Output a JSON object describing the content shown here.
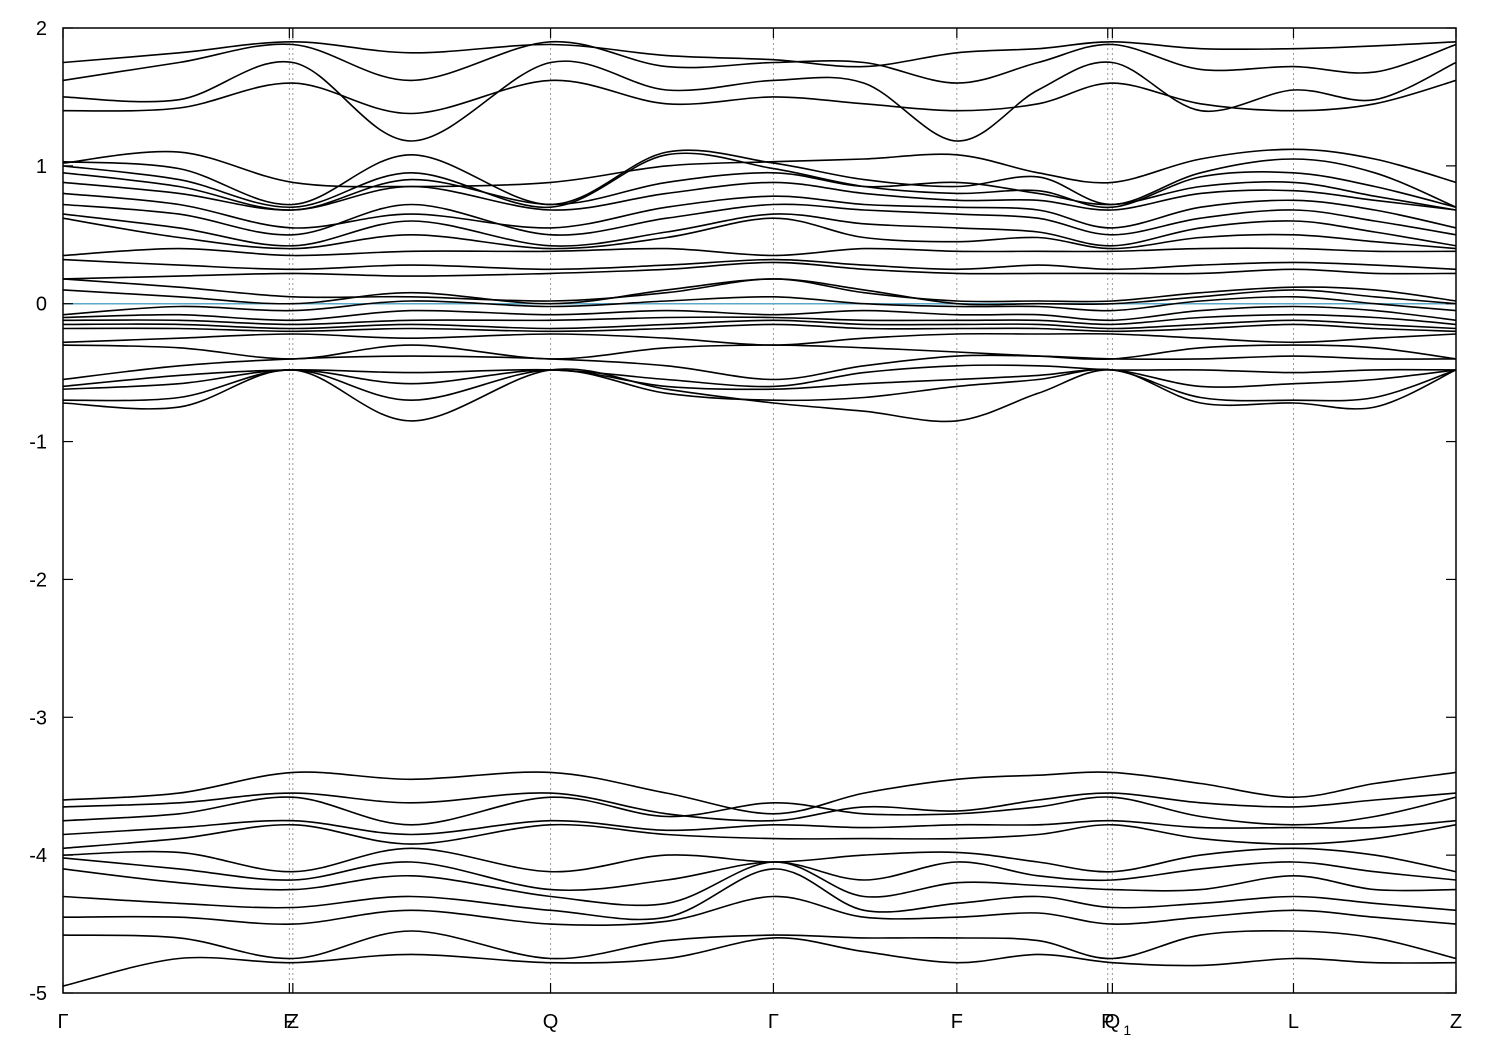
{
  "chart_data": {
    "type": "line",
    "title": "",
    "xlabel": "",
    "ylabel": "",
    "xlim": [
      0,
      6.0
    ],
    "ylim": [
      -5,
      2
    ],
    "yticks": [
      -5,
      -4,
      -3,
      -2,
      -1,
      0,
      1,
      2
    ],
    "grid": "vertical dotted at high-symmetry points",
    "fermi_level": 0,
    "kpoints": [
      {
        "x": 0.0,
        "label": "Γ",
        "sub": ""
      },
      {
        "x": 0.975,
        "label": "F",
        "sub": ""
      },
      {
        "x": 0.99,
        "label": "Z",
        "sub": ""
      },
      {
        "x": 2.1,
        "label": "Q",
        "sub": ""
      },
      {
        "x": 3.06,
        "label": "Γ",
        "sub": ""
      },
      {
        "x": 3.85,
        "label": "F",
        "sub": ""
      },
      {
        "x": 4.5,
        "label": "P",
        "sub": ""
      },
      {
        "x": 4.52,
        "label": "Q",
        "sub": "1"
      },
      {
        "x": 5.3,
        "label": "L",
        "sub": ""
      },
      {
        "x": 6.0,
        "label": "Z",
        "sub": ""
      }
    ],
    "band_x": [
      0.0,
      0.5,
      0.99,
      1.5,
      2.1,
      2.6,
      3.06,
      3.45,
      3.85,
      4.2,
      4.52,
      4.9,
      5.3,
      5.65,
      6.0
    ],
    "series": [
      {
        "values": [
          1.4,
          1.42,
          1.6,
          1.38,
          1.62,
          1.45,
          1.5,
          1.45,
          1.4,
          1.45,
          1.6,
          1.45,
          1.4,
          1.45,
          1.62
        ]
      },
      {
        "values": [
          1.5,
          1.48,
          1.75,
          1.18,
          1.75,
          1.55,
          1.62,
          1.6,
          1.18,
          1.55,
          1.75,
          1.4,
          1.55,
          1.48,
          1.75
        ]
      },
      {
        "values": [
          1.62,
          1.75,
          1.88,
          1.62,
          1.9,
          1.72,
          1.75,
          1.75,
          1.6,
          1.75,
          1.88,
          1.7,
          1.72,
          1.68,
          1.88
        ]
      },
      {
        "values": [
          1.75,
          1.82,
          1.9,
          1.82,
          1.88,
          1.8,
          1.77,
          1.72,
          1.82,
          1.85,
          1.9,
          1.85,
          1.85,
          1.87,
          1.9
        ]
      },
      {
        "values": [
          1.02,
          1.1,
          0.88,
          0.85,
          0.88,
          1.0,
          1.03,
          1.05,
          1.08,
          0.95,
          0.88,
          1.05,
          1.12,
          1.05,
          0.88
        ]
      },
      {
        "values": [
          1.03,
          0.98,
          0.72,
          1.08,
          0.72,
          1.1,
          1.02,
          0.9,
          0.85,
          0.92,
          0.72,
          0.95,
          1.05,
          0.95,
          0.7
        ]
      },
      {
        "values": [
          1.0,
          0.9,
          0.7,
          0.95,
          0.7,
          1.08,
          0.98,
          0.85,
          0.8,
          0.82,
          0.7,
          0.92,
          0.95,
          0.85,
          0.7
        ]
      },
      {
        "values": [
          0.95,
          0.85,
          0.68,
          0.9,
          0.72,
          0.88,
          0.95,
          0.85,
          0.88,
          0.8,
          0.72,
          0.85,
          0.88,
          0.78,
          0.68
        ]
      },
      {
        "values": [
          0.88,
          0.8,
          0.68,
          0.85,
          0.68,
          0.8,
          0.88,
          0.8,
          0.75,
          0.75,
          0.68,
          0.8,
          0.82,
          0.75,
          0.68
        ]
      },
      {
        "values": [
          0.8,
          0.72,
          0.55,
          0.65,
          0.55,
          0.7,
          0.78,
          0.72,
          0.7,
          0.68,
          0.55,
          0.7,
          0.75,
          0.68,
          0.55
        ]
      },
      {
        "values": [
          0.72,
          0.65,
          0.5,
          0.72,
          0.5,
          0.62,
          0.72,
          0.68,
          0.65,
          0.62,
          0.5,
          0.62,
          0.68,
          0.6,
          0.5
        ]
      },
      {
        "values": [
          0.65,
          0.55,
          0.42,
          0.6,
          0.42,
          0.52,
          0.65,
          0.58,
          0.55,
          0.52,
          0.42,
          0.55,
          0.6,
          0.52,
          0.42
        ]
      },
      {
        "values": [
          0.62,
          0.48,
          0.4,
          0.5,
          0.4,
          0.48,
          0.62,
          0.48,
          0.45,
          0.48,
          0.4,
          0.48,
          0.5,
          0.45,
          0.4
        ]
      },
      {
        "values": [
          0.35,
          0.4,
          0.35,
          0.38,
          0.38,
          0.4,
          0.35,
          0.4,
          0.38,
          0.38,
          0.38,
          0.4,
          0.4,
          0.38,
          0.38
        ]
      },
      {
        "values": [
          0.32,
          0.28,
          0.25,
          0.28,
          0.25,
          0.28,
          0.32,
          0.28,
          0.25,
          0.28,
          0.25,
          0.28,
          0.3,
          0.28,
          0.25
        ]
      },
      {
        "values": [
          0.18,
          0.2,
          0.22,
          0.2,
          0.22,
          0.25,
          0.3,
          0.25,
          0.22,
          0.22,
          0.22,
          0.22,
          0.25,
          0.22,
          0.22
        ]
      },
      {
        "values": [
          0.18,
          0.12,
          0.05,
          0.05,
          0.02,
          0.08,
          0.18,
          0.08,
          0.02,
          0.02,
          0.02,
          0.08,
          0.12,
          0.1,
          0.02
        ]
      },
      {
        "values": [
          0.1,
          0.05,
          0.0,
          0.08,
          0.0,
          0.1,
          0.18,
          0.1,
          0.0,
          0.0,
          0.0,
          0.05,
          0.1,
          0.05,
          0.0
        ]
      },
      {
        "values": [
          -0.08,
          -0.02,
          -0.05,
          0.02,
          -0.02,
          0.02,
          0.05,
          0.0,
          -0.02,
          -0.02,
          -0.05,
          0.02,
          0.05,
          0.0,
          -0.05
        ]
      },
      {
        "values": [
          -0.1,
          -0.08,
          -0.12,
          -0.05,
          -0.08,
          -0.05,
          -0.08,
          -0.05,
          -0.08,
          -0.08,
          -0.12,
          -0.05,
          -0.02,
          -0.05,
          -0.12
        ]
      },
      {
        "values": [
          -0.12,
          -0.12,
          -0.15,
          -0.12,
          -0.12,
          -0.1,
          -0.1,
          -0.12,
          -0.12,
          -0.12,
          -0.15,
          -0.1,
          -0.08,
          -0.1,
          -0.15
        ]
      },
      {
        "values": [
          -0.15,
          -0.15,
          -0.18,
          -0.15,
          -0.18,
          -0.15,
          -0.12,
          -0.15,
          -0.15,
          -0.15,
          -0.18,
          -0.15,
          -0.12,
          -0.15,
          -0.18
        ]
      },
      {
        "values": [
          -0.18,
          -0.18,
          -0.2,
          -0.18,
          -0.2,
          -0.18,
          -0.15,
          -0.18,
          -0.18,
          -0.18,
          -0.2,
          -0.18,
          -0.15,
          -0.18,
          -0.2
        ]
      },
      {
        "values": [
          -0.28,
          -0.25,
          -0.22,
          -0.25,
          -0.22,
          -0.25,
          -0.3,
          -0.25,
          -0.22,
          -0.22,
          -0.22,
          -0.25,
          -0.28,
          -0.25,
          -0.22
        ]
      },
      {
        "values": [
          -0.3,
          -0.32,
          -0.4,
          -0.3,
          -0.4,
          -0.32,
          -0.3,
          -0.32,
          -0.35,
          -0.38,
          -0.4,
          -0.32,
          -0.3,
          -0.32,
          -0.4
        ]
      },
      {
        "values": [
          -0.55,
          -0.45,
          -0.4,
          -0.38,
          -0.4,
          -0.45,
          -0.55,
          -0.45,
          -0.38,
          -0.38,
          -0.4,
          -0.4,
          -0.38,
          -0.4,
          -0.4
        ]
      },
      {
        "values": [
          -0.6,
          -0.52,
          -0.48,
          -0.5,
          -0.48,
          -0.55,
          -0.6,
          -0.5,
          -0.45,
          -0.45,
          -0.48,
          -0.48,
          -0.5,
          -0.48,
          -0.48
        ]
      },
      {
        "values": [
          -0.62,
          -0.58,
          -0.48,
          -0.58,
          -0.48,
          -0.6,
          -0.62,
          -0.58,
          -0.55,
          -0.52,
          -0.48,
          -0.6,
          -0.58,
          -0.55,
          -0.48
        ]
      },
      {
        "values": [
          -0.7,
          -0.68,
          -0.48,
          -0.7,
          -0.48,
          -0.65,
          -0.7,
          -0.68,
          -0.6,
          -0.55,
          -0.48,
          -0.68,
          -0.7,
          -0.68,
          -0.48
        ]
      },
      {
        "values": [
          -0.72,
          -0.75,
          -0.48,
          -0.85,
          -0.48,
          -0.62,
          -0.72,
          -0.78,
          -0.85,
          -0.65,
          -0.48,
          -0.72,
          -0.72,
          -0.75,
          -0.48
        ]
      },
      {
        "values": [
          -3.6,
          -3.55,
          -3.4,
          -3.45,
          -3.4,
          -3.55,
          -3.7,
          -3.55,
          -3.45,
          -3.42,
          -3.4,
          -3.48,
          -3.58,
          -3.48,
          -3.4
        ]
      },
      {
        "values": [
          -3.65,
          -3.62,
          -3.55,
          -3.62,
          -3.55,
          -3.7,
          -3.75,
          -3.65,
          -3.68,
          -3.6,
          -3.55,
          -3.62,
          -3.65,
          -3.6,
          -3.55
        ]
      },
      {
        "values": [
          -3.75,
          -3.7,
          -3.58,
          -3.78,
          -3.58,
          -3.72,
          -3.62,
          -3.7,
          -3.7,
          -3.65,
          -3.58,
          -3.72,
          -3.78,
          -3.72,
          -3.58
        ]
      },
      {
        "values": [
          -3.85,
          -3.8,
          -3.75,
          -3.85,
          -3.75,
          -3.82,
          -3.78,
          -3.8,
          -3.78,
          -3.78,
          -3.75,
          -3.8,
          -3.8,
          -3.8,
          -3.75
        ]
      },
      {
        "values": [
          -3.95,
          -3.88,
          -3.78,
          -3.92,
          -3.78,
          -3.85,
          -3.88,
          -3.88,
          -3.88,
          -3.85,
          -3.78,
          -3.88,
          -3.92,
          -3.88,
          -3.78
        ]
      },
      {
        "values": [
          -4.0,
          -3.98,
          -4.12,
          -3.95,
          -4.12,
          -4.0,
          -4.05,
          -4.0,
          -3.98,
          -4.05,
          -4.12,
          -4.0,
          -3.95,
          -4.0,
          -4.12
        ]
      },
      {
        "values": [
          -4.02,
          -4.1,
          -4.18,
          -4.05,
          -4.25,
          -4.18,
          -4.05,
          -4.18,
          -4.05,
          -4.15,
          -4.18,
          -4.1,
          -4.05,
          -4.12,
          -4.18
        ]
      },
      {
        "values": [
          -4.1,
          -4.2,
          -4.25,
          -4.15,
          -4.3,
          -4.35,
          -4.05,
          -4.3,
          -4.2,
          -4.22,
          -4.25,
          -4.25,
          -4.15,
          -4.25,
          -4.25
        ]
      },
      {
        "values": [
          -4.3,
          -4.35,
          -4.38,
          -4.3,
          -4.4,
          -4.45,
          -4.1,
          -4.4,
          -4.35,
          -4.3,
          -4.38,
          -4.35,
          -4.3,
          -4.35,
          -4.4
        ]
      },
      {
        "values": [
          -4.45,
          -4.45,
          -4.5,
          -4.4,
          -4.5,
          -4.48,
          -4.3,
          -4.45,
          -4.45,
          -4.42,
          -4.5,
          -4.45,
          -4.4,
          -4.45,
          -4.5
        ]
      },
      {
        "values": [
          -4.58,
          -4.6,
          -4.75,
          -4.55,
          -4.75,
          -4.62,
          -4.58,
          -4.6,
          -4.6,
          -4.62,
          -4.75,
          -4.58,
          -4.55,
          -4.6,
          -4.75
        ]
      },
      {
        "values": [
          -4.95,
          -4.75,
          -4.78,
          -4.72,
          -4.78,
          -4.75,
          -4.6,
          -4.7,
          -4.78,
          -4.72,
          -4.78,
          -4.8,
          -4.75,
          -4.78,
          -4.78
        ]
      }
    ]
  }
}
